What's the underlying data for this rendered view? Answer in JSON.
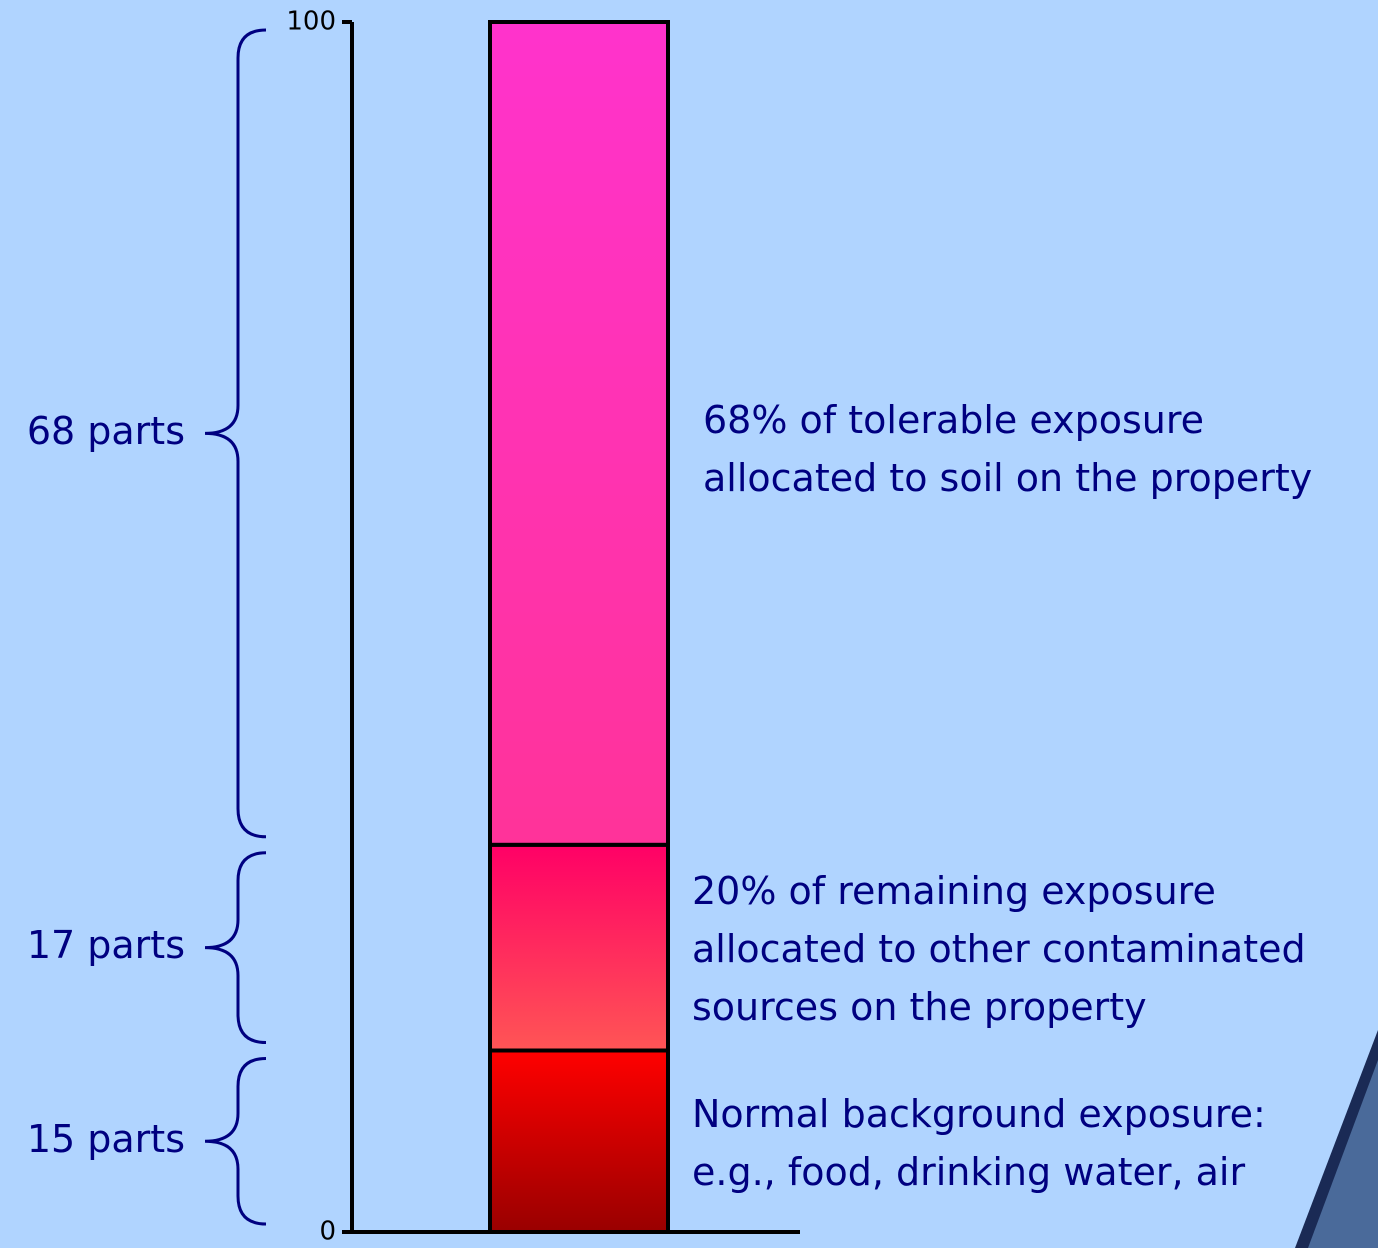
{
  "chart_data": {
    "type": "stacked_bar",
    "ylim": [
      0,
      100
    ],
    "yticks": [
      0,
      100
    ],
    "segments": [
      {
        "value": 15,
        "label": "15 parts",
        "description": [
          "Normal background exposure:",
          "e.g., food, drinking water, air"
        ],
        "colors": [
          "#ff0000",
          "#990000"
        ]
      },
      {
        "value": 17,
        "label": "17 parts",
        "description": [
          "20% of remaining exposure",
          "allocated to other contaminated",
          "sources on the property"
        ],
        "colors": [
          "#ff0066",
          "#ff5555"
        ]
      },
      {
        "value": 68,
        "label": "68 parts",
        "description": [
          "68% of tolerable exposure",
          "allocated to soil on the property"
        ],
        "colors": [
          "#ff33cc",
          "#ff3399"
        ]
      }
    ]
  }
}
